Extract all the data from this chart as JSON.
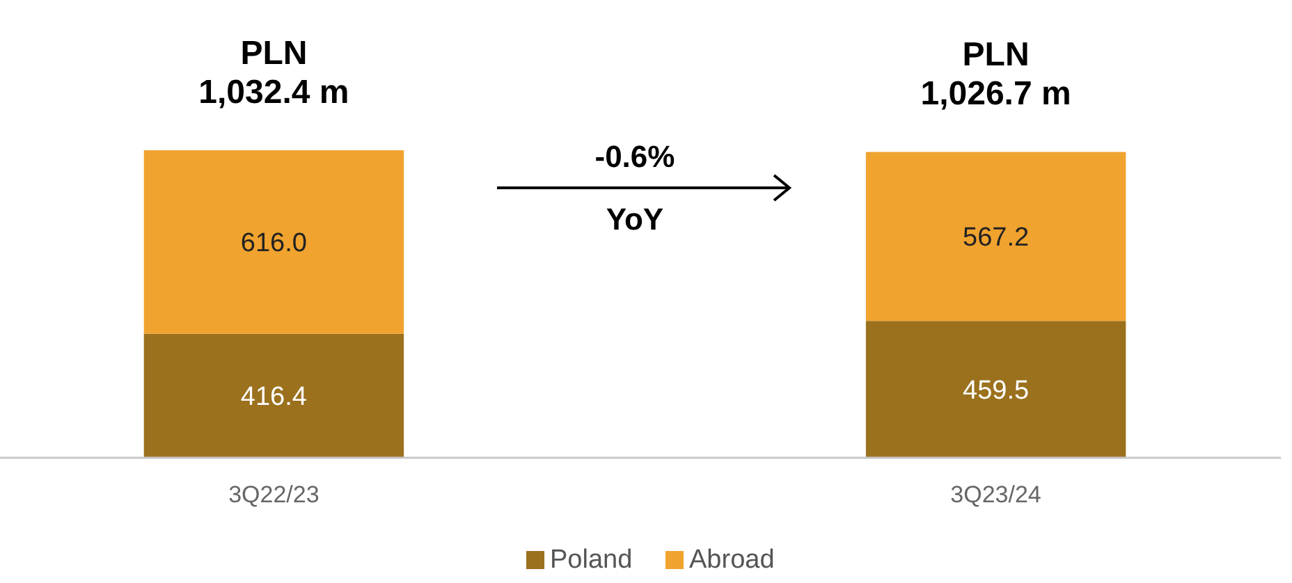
{
  "chart_data": {
    "type": "bar",
    "stacked": true,
    "categories": [
      "3Q22/23",
      "3Q23/24"
    ],
    "series": [
      {
        "name": "Poland",
        "color": "#9b711e",
        "values": [
          416.4,
          459.5
        ],
        "value_labels": [
          "416.4",
          "459.5"
        ]
      },
      {
        "name": "Abroad",
        "color": "#f0a32e",
        "values": [
          616.0,
          567.2
        ],
        "value_labels": [
          "616.0",
          "567.2"
        ]
      }
    ],
    "totals": [
      "PLN\n1,032.4 m",
      "PLN\n1,026.7 m"
    ],
    "annotations": [
      "-0.6%",
      "YoY"
    ],
    "legend": "bottom"
  }
}
